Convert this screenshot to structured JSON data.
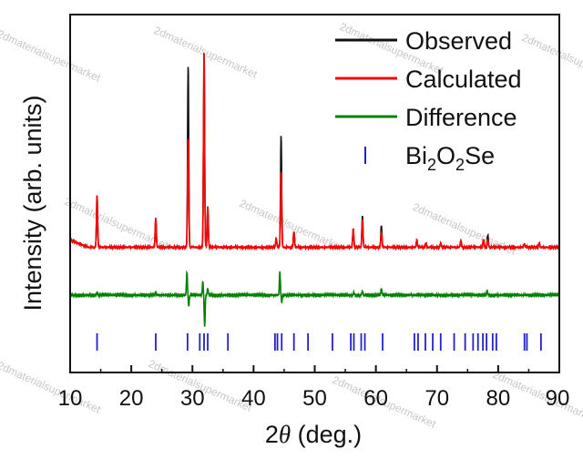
{
  "chart_data": {
    "type": "line",
    "xlabel": "2θ (deg.)",
    "xlabel_parts": {
      "prefix": "2",
      "symbol": "θ",
      "suffix": " (deg.)"
    },
    "ylabel": "Intensity (arb. units)",
    "xlim": [
      10,
      90
    ],
    "xticks": [
      10,
      20,
      30,
      40,
      50,
      60,
      70,
      80,
      90
    ],
    "xtick_labels": [
      "10",
      "20",
      "30",
      "40",
      "50",
      "60",
      "70",
      "80",
      "90"
    ],
    "y_ticks_shown": false,
    "grid": false,
    "legend_position": "top-right",
    "colors": {
      "observed": "#111111",
      "calculated": "#ff0000",
      "difference": "#008000",
      "bragg": "#2222cc"
    },
    "legend": [
      {
        "key": "observed",
        "label": "Observed",
        "marker": "line"
      },
      {
        "key": "calculated",
        "label": "Calculated",
        "marker": "line"
      },
      {
        "key": "difference",
        "label": "Difference",
        "marker": "line"
      },
      {
        "key": "bragg",
        "label": "Bi2O2Se",
        "label_parts": [
          "Bi",
          "2",
          "O",
          "2",
          "Se"
        ],
        "marker": "tick"
      }
    ],
    "series": [
      {
        "name": "Observed",
        "baseline": 1.0,
        "peaks": [
          [
            14.4,
            7.6
          ],
          [
            24.0,
            4.3
          ],
          [
            29.3,
            26.6
          ],
          [
            31.9,
            28.5
          ],
          [
            32.5,
            6.0
          ],
          [
            43.7,
            1.3
          ],
          [
            44.5,
            16.3
          ],
          [
            46.6,
            2.3
          ],
          [
            56.3,
            2.7
          ],
          [
            57.8,
            4.6
          ],
          [
            60.9,
            3.2
          ],
          [
            66.7,
            1.1
          ],
          [
            68.2,
            0.6
          ],
          [
            70.6,
            0.6
          ],
          [
            73.9,
            1.0
          ],
          [
            77.6,
            1.2
          ],
          [
            78.3,
            1.8
          ],
          [
            84.3,
            0.5
          ],
          [
            86.7,
            0.6
          ]
        ]
      },
      {
        "name": "Calculated",
        "baseline": 1.0,
        "peaks": [
          [
            14.4,
            7.6
          ],
          [
            24.0,
            4.3
          ],
          [
            29.3,
            16.0
          ],
          [
            31.9,
            28.5
          ],
          [
            32.5,
            6.0
          ],
          [
            43.7,
            1.3
          ],
          [
            44.5,
            11.0
          ],
          [
            46.6,
            2.3
          ],
          [
            56.3,
            2.7
          ],
          [
            57.8,
            4.1
          ],
          [
            60.9,
            2.2
          ],
          [
            66.7,
            1.1
          ],
          [
            68.2,
            0.6
          ],
          [
            70.6,
            0.6
          ],
          [
            73.9,
            1.0
          ],
          [
            77.6,
            1.2
          ],
          [
            78.3,
            1.2
          ],
          [
            84.3,
            0.5
          ],
          [
            86.7,
            0.6
          ]
        ]
      },
      {
        "name": "Difference",
        "offset": -6.0,
        "spikes": [
          [
            14.4,
            0.4
          ],
          [
            24.0,
            0.5
          ],
          [
            29.1,
            3.4
          ],
          [
            29.4,
            -1.6
          ],
          [
            31.7,
            2.0
          ],
          [
            32.0,
            -4.6
          ],
          [
            32.5,
            1.0
          ],
          [
            44.3,
            3.4
          ],
          [
            44.6,
            -1.0
          ],
          [
            56.4,
            0.4
          ],
          [
            57.8,
            0.6
          ],
          [
            60.9,
            1.0
          ],
          [
            78.2,
            0.7
          ]
        ]
      }
    ],
    "bragg_positions": [
      14.4,
      24.0,
      29.2,
      31.2,
      31.9,
      32.5,
      35.8,
      43.5,
      43.9,
      44.6,
      46.6,
      48.9,
      52.9,
      55.9,
      56.4,
      57.6,
      58.2,
      61.1,
      66.3,
      66.9,
      68.1,
      69.3,
      70.6,
      72.8,
      74.6,
      75.9,
      76.7,
      77.5,
      78.1,
      79.1,
      79.7,
      84.3,
      84.7,
      87.0
    ]
  },
  "watermark": "2dmaterialsupermarket"
}
